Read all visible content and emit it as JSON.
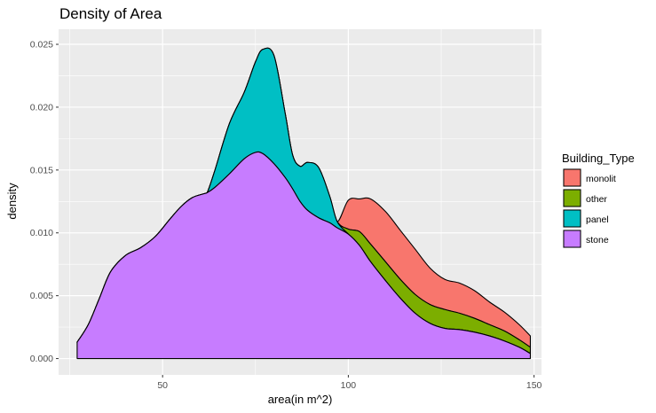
{
  "chart_data": {
    "type": "area",
    "subtype": "stacked-density",
    "title": "Density of Area",
    "xlabel": "area(in m^2)",
    "ylabel": "density",
    "xlim": [
      22,
      152
    ],
    "ylim": [
      -0.0013,
      0.0262
    ],
    "x_ticks": [
      50,
      100,
      150
    ],
    "x_tick_labels": [
      "50",
      "100",
      "150"
    ],
    "y_ticks": [
      0,
      0.005,
      0.01,
      0.015,
      0.02,
      0.025
    ],
    "y_tick_labels": [
      "0.000",
      "0.005",
      "0.010",
      "0.015",
      "0.020",
      "0.025"
    ],
    "grid": true,
    "legend_position": "right",
    "legend_title": "Building_Type",
    "x": [
      27,
      30,
      33,
      36,
      40,
      44,
      48,
      52,
      55,
      58,
      61,
      62,
      64,
      68,
      72,
      75,
      77,
      80,
      83,
      85,
      87,
      89,
      92,
      95,
      97,
      100,
      103,
      106,
      110,
      114,
      118,
      122,
      126,
      130,
      134,
      138,
      142,
      146,
      149
    ],
    "series": [
      {
        "name": "stone",
        "color": "#C77CFF",
        "values": [
          0.0013,
          0.0027,
          0.0048,
          0.0069,
          0.0082,
          0.0088,
          0.0097,
          0.0111,
          0.0121,
          0.0128,
          0.0131,
          0.0132,
          0.0136,
          0.0147,
          0.0159,
          0.0164,
          0.0163,
          0.0155,
          0.0144,
          0.0135,
          0.0125,
          0.0118,
          0.0112,
          0.0108,
          0.0104,
          0.0099,
          0.009,
          0.0077,
          0.0062,
          0.0048,
          0.0036,
          0.0028,
          0.0024,
          0.0023,
          0.0021,
          0.0018,
          0.0014,
          0.0009,
          0.0004
        ]
      },
      {
        "name": "panel",
        "color": "#00BFC4",
        "values": [
          0,
          0,
          0,
          0,
          0,
          0,
          0,
          0,
          0,
          0,
          0,
          0,
          0.0013,
          0.004,
          0.0053,
          0.0072,
          0.0083,
          0.0086,
          0.0051,
          0.0027,
          0.0028,
          0.0038,
          0.004,
          0.0021,
          0.0005,
          0,
          0,
          0,
          0,
          0,
          0,
          0,
          0,
          0,
          0,
          0,
          0,
          0,
          0
        ]
      },
      {
        "name": "other",
        "color": "#7CAE00",
        "values": [
          0,
          0,
          0,
          0,
          0,
          0,
          0,
          0,
          0,
          0,
          0,
          0,
          0,
          0,
          0,
          0,
          0,
          0,
          0,
          0,
          0,
          0,
          0,
          0,
          0,
          0.0004,
          0.0011,
          0.0014,
          0.0015,
          0.0015,
          0.0015,
          0.0015,
          0.0015,
          0.0013,
          0.0011,
          0.0009,
          0.0008,
          0.0006,
          0.0005
        ]
      },
      {
        "name": "monolit",
        "color": "#F8766D",
        "values": [
          0,
          0,
          0,
          0,
          0,
          0,
          0,
          0,
          0,
          0,
          0,
          0,
          0,
          0,
          0,
          0,
          0,
          0,
          0,
          0,
          0,
          0,
          0,
          0,
          0,
          0.0023,
          0.0026,
          0.0036,
          0.004,
          0.0039,
          0.0036,
          0.0029,
          0.0024,
          0.0024,
          0.0022,
          0.0018,
          0.0015,
          0.0012,
          0.0009
        ]
      }
    ],
    "legend_order": [
      "monolit",
      "other",
      "panel",
      "stone"
    ]
  },
  "colors": {
    "panel_background": "#EBEBEB",
    "grid": "#FFFFFF",
    "outline": "#000000"
  }
}
